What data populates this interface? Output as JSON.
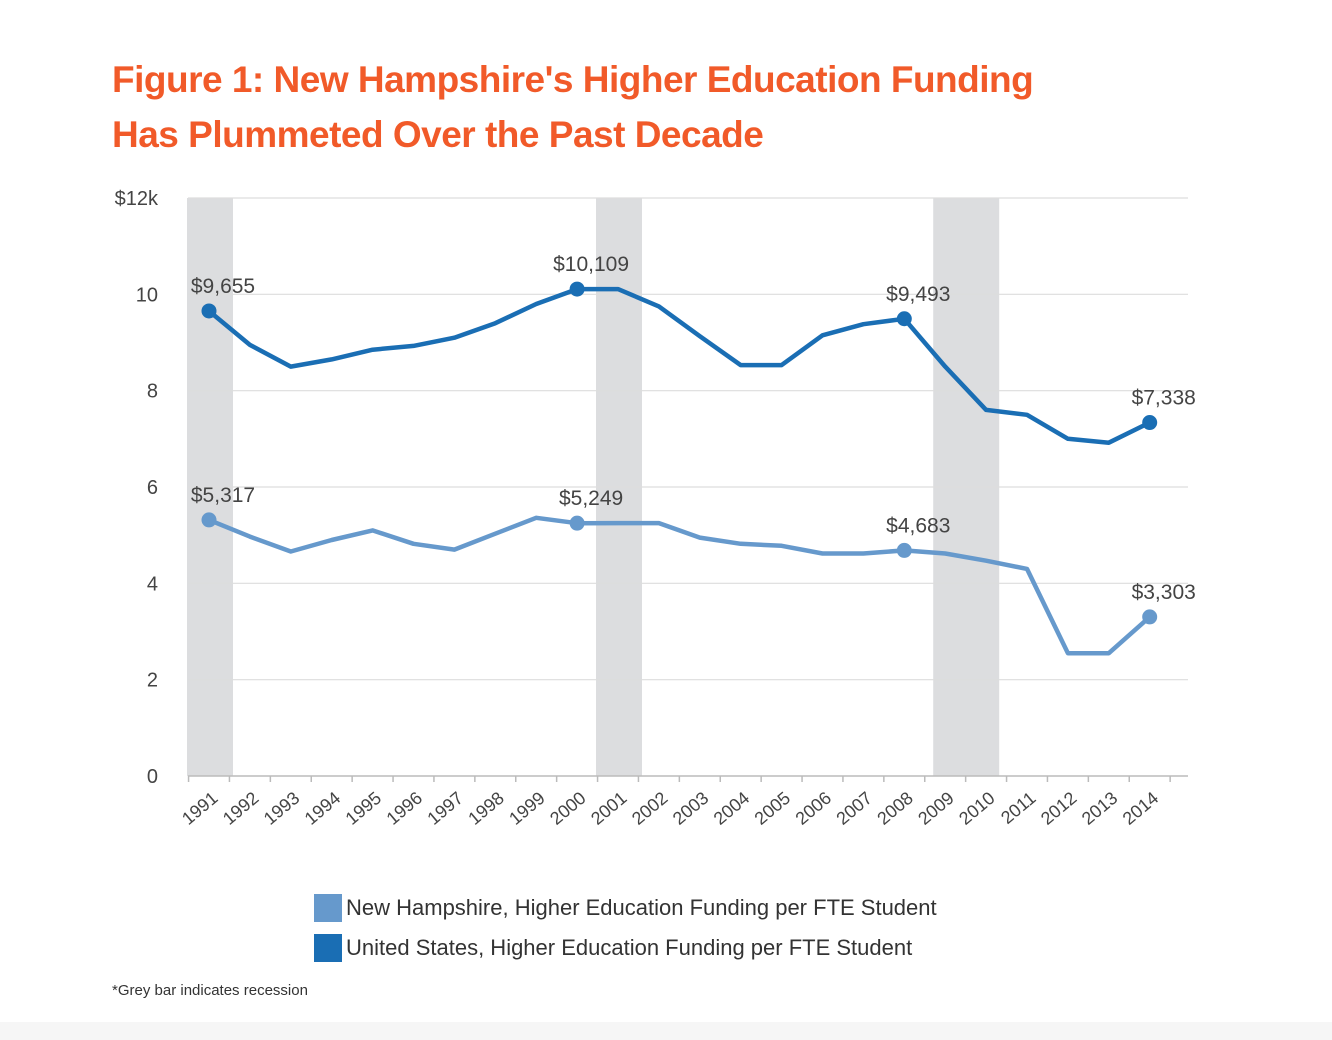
{
  "title_lines": [
    "Figure 1: New Hampshire's Higher Education Funding",
    "Has Plummeted Over the Past Decade"
  ],
  "footnote": "*Grey bar indicates recession",
  "colors": {
    "title": "#f15a29",
    "nh": "#6699cc",
    "us": "#1a6eb4",
    "recession": "#dcdddf",
    "grid": "#dddddd"
  },
  "chart_data": {
    "type": "line",
    "x": [
      "1991",
      "1992",
      "1993",
      "1994",
      "1995",
      "1996",
      "1997",
      "1998",
      "1999",
      "2000",
      "2001",
      "2002",
      "2003",
      "2004",
      "2005",
      "2006",
      "2007",
      "2008",
      "2009",
      "2010",
      "2011",
      "2012",
      "2013",
      "2014"
    ],
    "ylim": [
      0,
      12
    ],
    "yticks": [
      {
        "value": 0,
        "label": "0"
      },
      {
        "value": 2,
        "label": "2"
      },
      {
        "value": 4,
        "label": "4"
      },
      {
        "value": 6,
        "label": "6"
      },
      {
        "value": 8,
        "label": "8"
      },
      {
        "value": 10,
        "label": "10"
      },
      {
        "value": 12,
        "label": "$12k"
      }
    ],
    "grid": true,
    "recession_years": [
      "1991",
      "2001",
      "2009"
    ],
    "series": [
      {
        "name": "United States, Higher Education Funding per FTE Student",
        "color": "#1a6eb4",
        "values": [
          9.655,
          8.95,
          8.5,
          8.65,
          8.85,
          8.93,
          9.1,
          9.4,
          9.8,
          10.109,
          10.109,
          9.75,
          9.13,
          8.53,
          8.53,
          9.15,
          9.38,
          9.493,
          8.5,
          7.6,
          7.5,
          7.0,
          6.92,
          7.338
        ],
        "markers": [
          {
            "year": "1991",
            "label": "$9,655"
          },
          {
            "year": "2000",
            "label": "$10,109"
          },
          {
            "year": "2008",
            "label": "$9,493"
          },
          {
            "year": "2014",
            "label": "$7,338"
          }
        ]
      },
      {
        "name": "New Hampshire, Higher Education Funding per FTE Student",
        "color": "#6699cc",
        "values": [
          5.317,
          4.97,
          4.66,
          4.9,
          5.1,
          4.82,
          4.7,
          5.03,
          5.36,
          5.249,
          5.25,
          5.25,
          4.95,
          4.82,
          4.78,
          4.62,
          4.62,
          4.683,
          4.62,
          4.47,
          4.3,
          2.55,
          2.55,
          3.303
        ],
        "markers": [
          {
            "year": "1991",
            "label": "$5,317"
          },
          {
            "year": "2000",
            "label": "$5,249"
          },
          {
            "year": "2008",
            "label": "$4,683"
          },
          {
            "year": "2014",
            "label": "$3,303"
          }
        ]
      }
    ],
    "legend": [
      {
        "label": "New Hampshire, Higher Education Funding per FTE Student",
        "color": "#6699cc"
      },
      {
        "label": "United States, Higher Education Funding per FTE Student",
        "color": "#1a6eb4"
      }
    ],
    "legend_position": "bottom"
  }
}
